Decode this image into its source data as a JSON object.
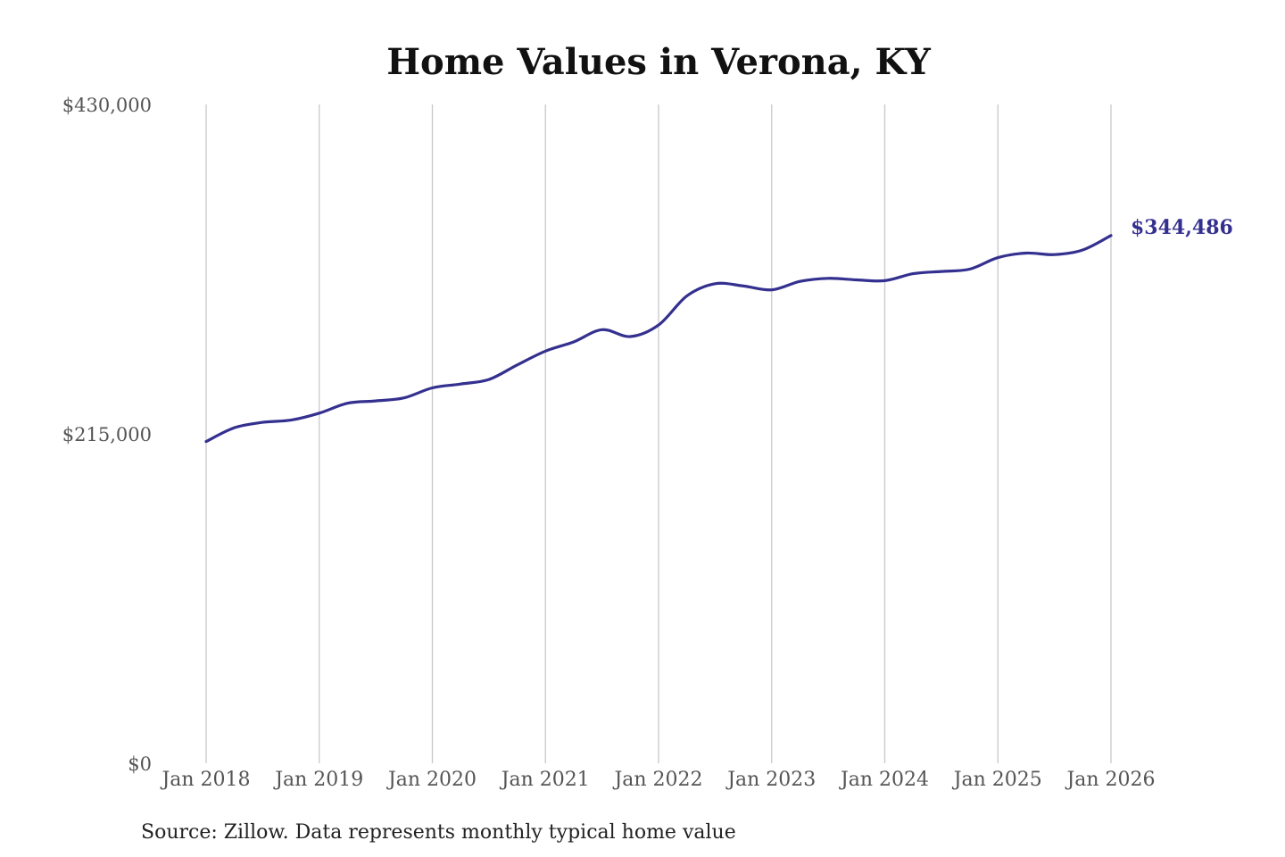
{
  "chart_data": {
    "type": "line",
    "title": "Home Values in Verona, KY",
    "xlabel": "",
    "ylabel": "",
    "ylim": [
      0,
      430000
    ],
    "yticks": [
      {
        "value": 0,
        "label": "$0"
      },
      {
        "value": 215000,
        "label": "$215,000"
      },
      {
        "value": 430000,
        "label": "$430,000"
      }
    ],
    "xticks": [
      {
        "value": 2018,
        "label": "Jan 2018"
      },
      {
        "value": 2019,
        "label": "Jan 2019"
      },
      {
        "value": 2020,
        "label": "Jan 2020"
      },
      {
        "value": 2021,
        "label": "Jan 2021"
      },
      {
        "value": 2022,
        "label": "Jan 2022"
      },
      {
        "value": 2023,
        "label": "Jan 2023"
      },
      {
        "value": 2024,
        "label": "Jan 2024"
      },
      {
        "value": 2025,
        "label": "Jan 2025"
      },
      {
        "value": 2026,
        "label": "Jan 2026"
      }
    ],
    "grid": "vertical",
    "legend": "none",
    "line_color": "#34308f",
    "series": [
      {
        "x": [
          "2018-01",
          "2018-04",
          "2018-07",
          "2018-10",
          "2019-01",
          "2019-04",
          "2019-07",
          "2019-10",
          "2020-01",
          "2020-04",
          "2020-07",
          "2020-10",
          "2021-01",
          "2021-04",
          "2021-07",
          "2021-10",
          "2022-01",
          "2022-04",
          "2022-07",
          "2022-10",
          "2023-01",
          "2023-04",
          "2023-07",
          "2023-10",
          "2024-01",
          "2024-04",
          "2024-07",
          "2024-10",
          "2025-01",
          "2025-04",
          "2025-07",
          "2025-10",
          "2026-01"
        ],
        "values": [
          210000,
          219000,
          222500,
          224000,
          228500,
          235000,
          236500,
          238500,
          245000,
          247500,
          250500,
          260000,
          269000,
          275000,
          283000,
          278500,
          286000,
          305000,
          313000,
          311500,
          309000,
          314500,
          316500,
          315500,
          315000,
          319500,
          321000,
          322500,
          330000,
          333000,
          332000,
          335000,
          344486
        ]
      }
    ],
    "end_label": "$344,486"
  },
  "source_note": "Source: Zillow. Data represents monthly typical home value"
}
